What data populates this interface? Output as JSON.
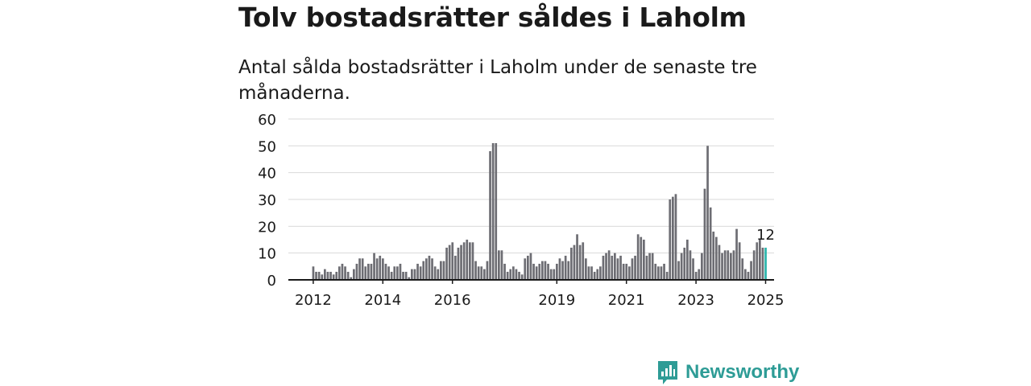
{
  "title": "Tolv bostadsrätter såldes i Laholm",
  "subtitle": "Antal sålda bostadsrätter i Laholm under de senaste tre månaderna.",
  "brand": {
    "name": "Newsworthy"
  },
  "colors": {
    "bar": "#6d6d73",
    "highlight": "#2bb5ac",
    "grid": "#d9d9d9",
    "axis": "#1a1a1a",
    "brand": "#2e9c96"
  },
  "chart_data": {
    "type": "bar",
    "y_ticks": [
      0,
      10,
      20,
      30,
      40,
      50,
      60
    ],
    "ylim": [
      0,
      60
    ],
    "x_tick_labels": [
      "2012",
      "2014",
      "2016",
      "2019",
      "2021",
      "2023",
      "2025"
    ],
    "x_tick_positions": [
      2012,
      2014,
      2016,
      2019,
      2021,
      2023,
      2025
    ],
    "x_start": 2011.5,
    "annotation": {
      "label": "12",
      "value": 12
    },
    "values": [
      5,
      3,
      3,
      2,
      4,
      3,
      3,
      2,
      3,
      5,
      6,
      5,
      3,
      1,
      4,
      6,
      8,
      8,
      5,
      6,
      6,
      10,
      8,
      9,
      8,
      6,
      5,
      3,
      5,
      5,
      6,
      3,
      3,
      1,
      4,
      4,
      6,
      5,
      7,
      8,
      9,
      8,
      5,
      4,
      7,
      7,
      12,
      13,
      14,
      9,
      12,
      13,
      14,
      15,
      14,
      14,
      7,
      5,
      5,
      4,
      7,
      48,
      51,
      51,
      11,
      11,
      6,
      3,
      4,
      5,
      4,
      3,
      2,
      8,
      9,
      10,
      6,
      5,
      6,
      7,
      7,
      6,
      4,
      4,
      6,
      8,
      7,
      9,
      7,
      12,
      13,
      17,
      13,
      14,
      8,
      5,
      5,
      3,
      4,
      5,
      9,
      10,
      11,
      9,
      10,
      8,
      9,
      6,
      6,
      5,
      8,
      9,
      17,
      16,
      15,
      9,
      10,
      10,
      6,
      5,
      5,
      6,
      3,
      30,
      31,
      32,
      7,
      10,
      12,
      15,
      11,
      8,
      3,
      4,
      10,
      34,
      50,
      27,
      18,
      16,
      13,
      10,
      11,
      11,
      10,
      11,
      19,
      14,
      8,
      4,
      3,
      7,
      11,
      14,
      15,
      12,
      12
    ]
  }
}
